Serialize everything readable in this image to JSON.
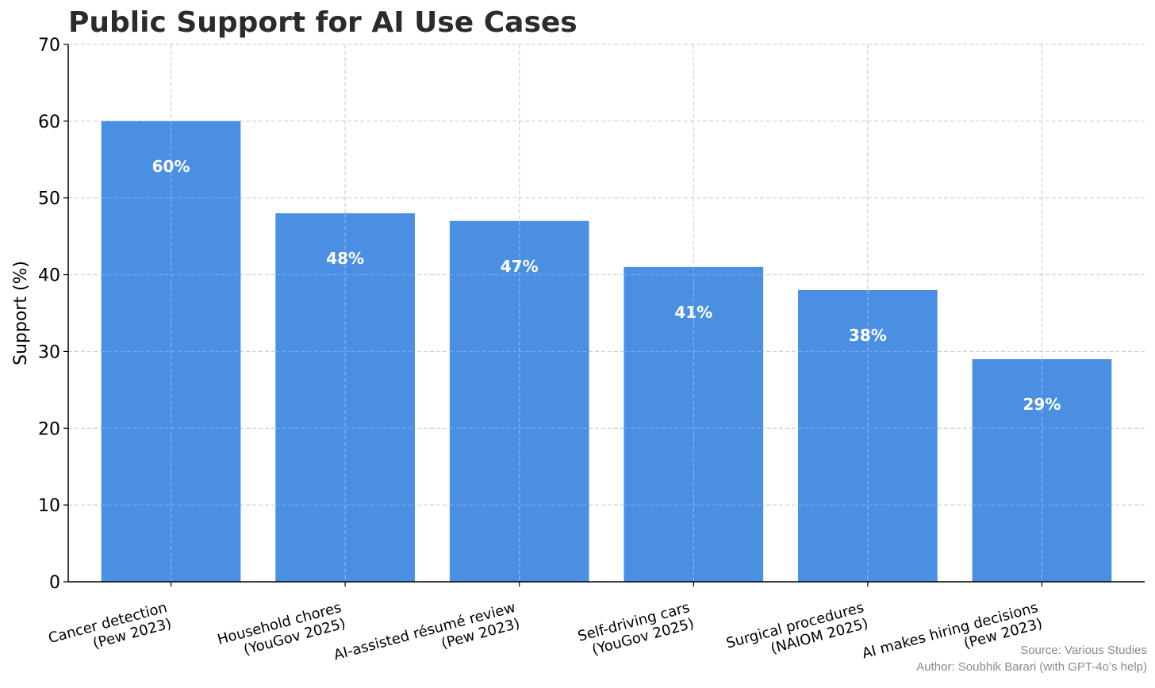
{
  "chart_data": {
    "type": "bar",
    "title": "Public Support for AI Use Cases",
    "ylabel": "Support (%)",
    "xlabel": "",
    "ylim": [
      0,
      70
    ],
    "yticks": [
      0,
      10,
      20,
      30,
      40,
      50,
      60,
      70
    ],
    "grid": true,
    "bar_color": "#4a8fe2",
    "categories": [
      [
        "Cancer detection",
        "(Pew 2023)"
      ],
      [
        "Household chores",
        "(YouGov 2025)"
      ],
      [
        "AI-assisted résumé review",
        "(Pew 2023)"
      ],
      [
        "Self-driving cars",
        "(YouGov 2025)"
      ],
      [
        "Surgical procedures",
        "(NAIOM 2025)"
      ],
      [
        "AI makes hiring decisions",
        "(Pew 2023)"
      ]
    ],
    "values": [
      60,
      48,
      47,
      41,
      38,
      29
    ],
    "data_labels": [
      "60%",
      "48%",
      "47%",
      "41%",
      "38%",
      "29%"
    ]
  },
  "credits": {
    "source": "Source: Various Studies",
    "author": "Author: Soubhik Barari (with GPT-4o’s help)"
  }
}
